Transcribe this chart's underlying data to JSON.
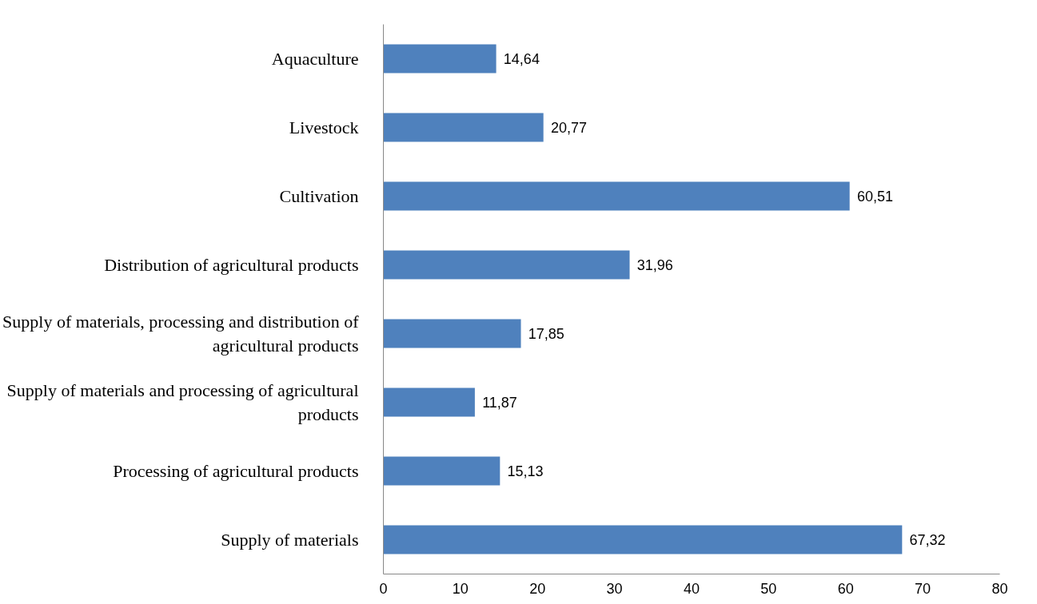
{
  "chart_data": {
    "type": "bar",
    "orientation": "horizontal",
    "categories": [
      "Aquaculture",
      "Livestock",
      "Cultivation",
      "Distribution of agricultural products",
      "Supply of materials, processing and distribution of agricultural products",
      "Supply of materials and processing of agricultural products",
      "Processing of agricultural products",
      "Supply of materials"
    ],
    "values": [
      14.64,
      20.77,
      60.51,
      31.96,
      17.85,
      11.87,
      15.13,
      67.32
    ],
    "value_labels": [
      "14,64",
      "20,77",
      "60,51",
      "31,96",
      "17,85",
      "11,87",
      "15,13",
      "67,32"
    ],
    "color": "#4f81bd",
    "xlim": [
      0,
      80
    ],
    "xticks": [
      0,
      10,
      20,
      30,
      40,
      50,
      60,
      70,
      80
    ],
    "grid": false
  }
}
